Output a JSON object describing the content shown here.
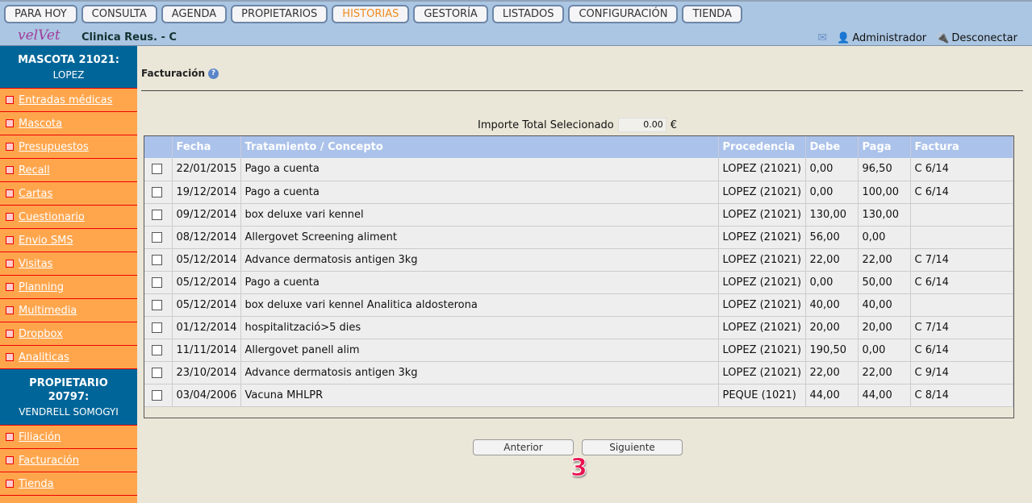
{
  "nav": [
    "PARA HOY",
    "CONSULTA",
    "AGENDA",
    "PROPIETARIOS",
    "HISTORIAS",
    "GESTORÍA",
    "LISTADOS",
    "CONFIGURACIÓN",
    "TIENDA"
  ],
  "nav_active": "HISTORIAS",
  "logo": "velVet",
  "clinic": "Clinica Reus. - C",
  "user": "Administrador",
  "logout": "Desconectar",
  "pet": {
    "title": "MASCOTA 21021:",
    "name": "LOPEZ"
  },
  "pet_menu": [
    "Entradas médicas",
    "Mascota",
    "Presupuestos",
    "Recall",
    "Cartas",
    "Cuestionario",
    "Envio SMS",
    "Visitas",
    "Planning",
    "Multimedia",
    "Dropbox",
    "Analiticas"
  ],
  "owner": {
    "title": "PROPIETARIO 20797:",
    "name": "VENDRELL SOMOGYI"
  },
  "owner_menu": [
    "Filiación",
    "Facturación",
    "Tienda"
  ],
  "page_title": "Facturación",
  "total": {
    "label": "Importe Total Selecionado",
    "value": "0.00",
    "currency": "€"
  },
  "columns": [
    "",
    "Fecha",
    "Tratamiento / Concepto",
    "Procedencia",
    "Debe",
    "Paga",
    "Factura"
  ],
  "rows": [
    [
      "22/01/2015",
      "Pago a cuenta",
      "LOPEZ (21021)",
      "0,00",
      "96,50",
      "C 6/14"
    ],
    [
      "19/12/2014",
      "Pago a cuenta",
      "LOPEZ (21021)",
      "0,00",
      "100,00",
      "C 6/14"
    ],
    [
      "09/12/2014",
      "box deluxe vari kennel",
      "LOPEZ (21021)",
      "130,00",
      "130,00",
      ""
    ],
    [
      "08/12/2014",
      "Allergovet Screening aliment",
      "LOPEZ (21021)",
      "56,00",
      "0,00",
      ""
    ],
    [
      "05/12/2014",
      "Advance dermatosis antigen 3kg",
      "LOPEZ (21021)",
      "22,00",
      "22,00",
      "C 7/14"
    ],
    [
      "05/12/2014",
      "Pago a cuenta",
      "LOPEZ (21021)",
      "0,00",
      "50,00",
      "C 6/14"
    ],
    [
      "05/12/2014",
      "box deluxe vari kennel Analitica aldosterona",
      "LOPEZ (21021)",
      "40,00",
      "40,00",
      ""
    ],
    [
      "01/12/2014",
      "hospitalització>5 dies",
      "LOPEZ (21021)",
      "20,00",
      "20,00",
      "C 7/14"
    ],
    [
      "11/11/2014",
      "Allergovet panell alim",
      "LOPEZ (21021)",
      "190,50",
      "0,00",
      "C 6/14"
    ],
    [
      "23/10/2014",
      "Advance dermatosis antigen 3kg",
      "LOPEZ (21021)",
      "22,00",
      "22,00",
      "C 9/14"
    ],
    [
      "03/04/2006",
      "Vacuna MHLPR",
      "PEQUE (1021)",
      "44,00",
      "44,00",
      "C 8/14"
    ]
  ],
  "prev": "Anterior",
  "next": "Siguiente",
  "page": "3"
}
